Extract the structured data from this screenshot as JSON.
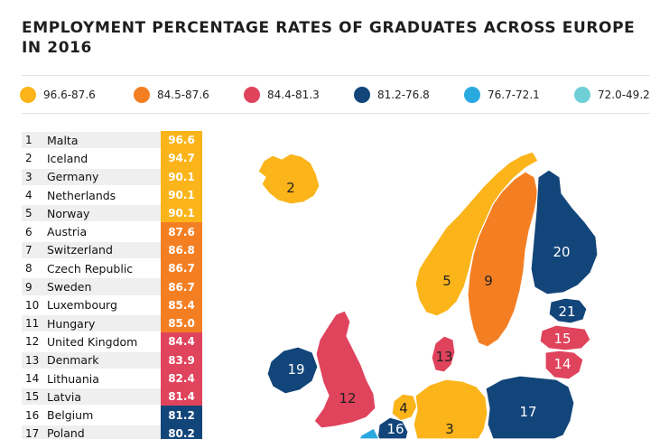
{
  "title": "EMPLOYMENT PERCENTAGE RATES OF GRADUATES ACROSS EUROPE IN 2016",
  "legend": [
    {
      "label": "96.6-87.6",
      "color": "#fbb41a"
    },
    {
      "label": "84.5-87.6",
      "color": "#f47f23"
    },
    {
      "label": "84.4-81.3",
      "color": "#e0435c"
    },
    {
      "label": "81.2-76.8",
      "color": "#12457a"
    },
    {
      "label": "76.7-72.1",
      "color": "#2aa9e0"
    },
    {
      "label": "72.0-49.2",
      "color": "#6fcfd6"
    }
  ],
  "ranking": [
    {
      "rank": "1",
      "country": "Malta",
      "value": "96.6",
      "color": "#fbb41a"
    },
    {
      "rank": "2",
      "country": "Iceland",
      "value": "94.7",
      "color": "#fbb41a"
    },
    {
      "rank": "3",
      "country": "Germany",
      "value": "90.1",
      "color": "#fbb41a"
    },
    {
      "rank": "4",
      "country": "Netherlands",
      "value": "90.1",
      "color": "#fbb41a"
    },
    {
      "rank": "5",
      "country": "Norway",
      "value": "90.1",
      "color": "#fbb41a"
    },
    {
      "rank": "6",
      "country": "Austria",
      "value": "87.6",
      "color": "#f47f23"
    },
    {
      "rank": "7",
      "country": "Switzerland",
      "value": "86.8",
      "color": "#f47f23"
    },
    {
      "rank": "8",
      "country": "Czech Republic",
      "value": "86.7",
      "color": "#f47f23"
    },
    {
      "rank": "9",
      "country": "Sweden",
      "value": "86.7",
      "color": "#f47f23"
    },
    {
      "rank": "10",
      "country": "Luxembourg",
      "value": "85.4",
      "color": "#f47f23"
    },
    {
      "rank": "11",
      "country": "Hungary",
      "value": "85.0",
      "color": "#f47f23"
    },
    {
      "rank": "12",
      "country": "United Kingdom",
      "value": "84.4",
      "color": "#e0435c"
    },
    {
      "rank": "13",
      "country": "Denmark",
      "value": "83.9",
      "color": "#e0435c"
    },
    {
      "rank": "14",
      "country": "Lithuania",
      "value": "82.4",
      "color": "#e0435c"
    },
    {
      "rank": "15",
      "country": "Latvia",
      "value": "81.4",
      "color": "#e0435c"
    },
    {
      "rank": "16",
      "country": "Belgium",
      "value": "81.2",
      "color": "#12457a"
    },
    {
      "rank": "17",
      "country": "Poland",
      "value": "80.2",
      "color": "#12457a"
    }
  ],
  "map_labels": {
    "iceland": "2",
    "norway": "5",
    "sweden": "9",
    "finland": "20",
    "estonia": "21",
    "latvia": "15",
    "lithuania": "14",
    "denmark": "13",
    "ireland": "19",
    "uk": "12",
    "netherlands": "4",
    "germany": "3",
    "poland": "17",
    "belgium": "16"
  }
}
